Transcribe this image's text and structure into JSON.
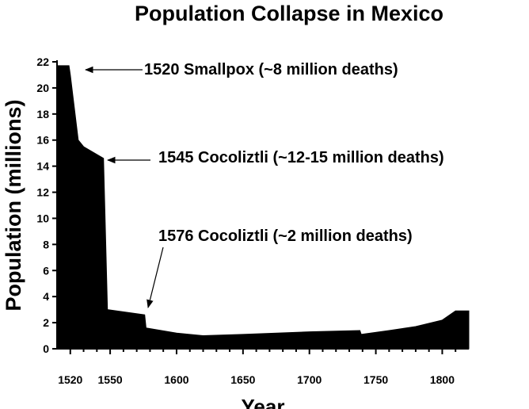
{
  "chart_data": {
    "type": "area",
    "title": "Population Collapse in Mexico",
    "xlabel": "Year",
    "ylabel": "Population (millions)",
    "xlim": [
      1510,
      1820
    ],
    "ylim": [
      0,
      22
    ],
    "x_ticks": [
      1520,
      1550,
      1600,
      1650,
      1700,
      1750,
      1800
    ],
    "y_ticks": [
      0,
      2,
      4,
      6,
      8,
      10,
      12,
      14,
      16,
      18,
      20,
      22
    ],
    "grid": false,
    "fill_color": "#000000",
    "series": [
      {
        "x": [
          1510,
          1519,
          1520,
          1526,
          1530,
          1545,
          1548,
          1576,
          1577,
          1600,
          1620,
          1650,
          1700,
          1738,
          1739,
          1760,
          1780,
          1800,
          1810,
          1820
        ],
        "y": [
          21.7,
          21.7,
          21.0,
          16.0,
          15.5,
          14.6,
          3.0,
          2.6,
          1.6,
          1.2,
          1.0,
          1.1,
          1.3,
          1.4,
          1.1,
          1.4,
          1.7,
          2.2,
          2.9,
          2.9
        ]
      }
    ],
    "annotations": [
      {
        "text": "1520  Smallpox (~8 million deaths)",
        "x": 1520,
        "y": 21.7
      },
      {
        "text": "1545  Cocoliztli (~12-15 million deaths)",
        "x": 1545,
        "y": 14.6
      },
      {
        "text": "1576  Cocoliztli (~2 million deaths)",
        "x": 1576,
        "y": 2.8
      }
    ]
  }
}
